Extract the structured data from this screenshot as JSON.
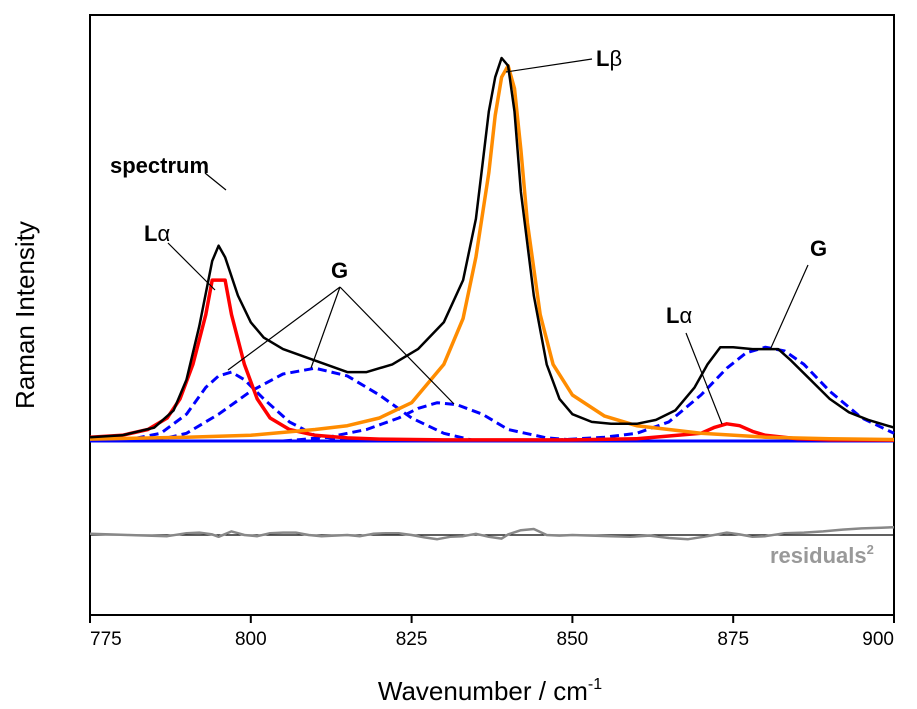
{
  "chart_data": {
    "type": "line",
    "xlabel": "Wavenumber / cm",
    "xlabel_sup": "-1",
    "ylabel": "Raman Intensity",
    "xlim": [
      775,
      900
    ],
    "ylim_upper": [
      0,
      1.0
    ],
    "x_ticks": [
      775,
      800,
      825,
      850,
      875,
      900
    ],
    "x_tick_labels": [
      "775",
      "800",
      "825",
      "850",
      "875",
      "900"
    ],
    "grid": false,
    "colors": {
      "spectrum": "#000000",
      "L_alpha": "#ff0000",
      "L_beta": "#ff8c00",
      "G": "#0000ff",
      "residuals": "#888888"
    },
    "annotations": {
      "spectrum": "spectrum",
      "L_alpha_1": "L",
      "L_alpha_2": "L",
      "alpha": "α",
      "L_beta": "L",
      "beta": "β",
      "G_1": "G",
      "G_2": "G",
      "residuals": "residuals",
      "residuals_sup": "2"
    },
    "series": [
      {
        "name": "spectrum",
        "style": "solid",
        "x": [
          775,
          780,
          785,
          788,
          790,
          792,
          794,
          795,
          796,
          798,
          800,
          802,
          805,
          810,
          815,
          818,
          822,
          826,
          830,
          833,
          835,
          836,
          837,
          838,
          839,
          840,
          841,
          842,
          844,
          846,
          848,
          850,
          853,
          856,
          860,
          863,
          866,
          869,
          871,
          873,
          875,
          878,
          880,
          882,
          884,
          887,
          890,
          893,
          896,
          900
        ],
        "y": [
          0.01,
          0.015,
          0.035,
          0.08,
          0.16,
          0.3,
          0.47,
          0.51,
          0.48,
          0.38,
          0.31,
          0.27,
          0.24,
          0.21,
          0.18,
          0.18,
          0.2,
          0.24,
          0.31,
          0.42,
          0.58,
          0.72,
          0.86,
          0.95,
          1.0,
          0.98,
          0.86,
          0.65,
          0.38,
          0.2,
          0.11,
          0.07,
          0.05,
          0.045,
          0.045,
          0.055,
          0.08,
          0.14,
          0.2,
          0.245,
          0.245,
          0.24,
          0.24,
          0.24,
          0.21,
          0.16,
          0.11,
          0.075,
          0.055,
          0.035
        ]
      },
      {
        "name": "L_alpha (796)",
        "style": "solid",
        "x": [
          775,
          780,
          784,
          787,
          789,
          791,
          793,
          794,
          796,
          797,
          799,
          801,
          803,
          806,
          810,
          815,
          820,
          830,
          840,
          850,
          860,
          870,
          872,
          874,
          876,
          878,
          880,
          885,
          890,
          900
        ],
        "y": [
          0.01,
          0.015,
          0.03,
          0.06,
          0.11,
          0.2,
          0.33,
          0.42,
          0.42,
          0.33,
          0.2,
          0.11,
          0.06,
          0.03,
          0.015,
          0.008,
          0.005,
          0.003,
          0.003,
          0.003,
          0.006,
          0.02,
          0.035,
          0.045,
          0.04,
          0.025,
          0.015,
          0.006,
          0.003,
          0.002
        ]
      },
      {
        "name": "G (797)",
        "style": "dashed",
        "x": [
          780,
          786,
          790,
          793,
          795,
          797,
          799,
          802,
          806,
          810,
          815
        ],
        "y": [
          0.0,
          0.02,
          0.07,
          0.14,
          0.17,
          0.18,
          0.16,
          0.11,
          0.05,
          0.015,
          0.0
        ]
      },
      {
        "name": "G (810)",
        "style": "dashed",
        "x": [
          785,
          790,
          795,
          800,
          805,
          810,
          815,
          820,
          825,
          830,
          835
        ],
        "y": [
          0.0,
          0.02,
          0.07,
          0.13,
          0.175,
          0.19,
          0.17,
          0.12,
          0.06,
          0.02,
          0.0
        ]
      },
      {
        "name": "G (830)",
        "style": "dashed",
        "x": [
          805,
          812,
          818,
          823,
          826,
          829,
          832,
          836,
          840,
          846,
          852
        ],
        "y": [
          0.0,
          0.01,
          0.03,
          0.06,
          0.085,
          0.1,
          0.095,
          0.07,
          0.03,
          0.008,
          0.0
        ]
      },
      {
        "name": "G (880)",
        "style": "dashed",
        "x": [
          845,
          855,
          860,
          865,
          870,
          874,
          877,
          880,
          883,
          886,
          890,
          895,
          900
        ],
        "y": [
          0.0,
          0.01,
          0.02,
          0.05,
          0.12,
          0.19,
          0.23,
          0.245,
          0.235,
          0.2,
          0.13,
          0.06,
          0.02
        ]
      },
      {
        "name": "L_beta (840)",
        "style": "solid",
        "x": [
          775,
          790,
          800,
          810,
          815,
          820,
          825,
          830,
          833,
          835,
          837,
          838,
          839,
          840,
          841,
          842,
          843,
          845,
          847,
          850,
          855,
          860,
          870,
          880,
          890,
          900
        ],
        "y": [
          0.005,
          0.01,
          0.015,
          0.03,
          0.04,
          0.06,
          0.1,
          0.2,
          0.32,
          0.48,
          0.7,
          0.85,
          0.95,
          0.98,
          0.92,
          0.76,
          0.57,
          0.33,
          0.2,
          0.12,
          0.065,
          0.04,
          0.02,
          0.01,
          0.006,
          0.004
        ]
      }
    ],
    "residuals": {
      "name": "residuals",
      "x": [
        775,
        778,
        781,
        784,
        787,
        790,
        792,
        794,
        795,
        797,
        799,
        801,
        803,
        805,
        807,
        809,
        811,
        813,
        815,
        817,
        819,
        821,
        823,
        825,
        827,
        829,
        831,
        833,
        835,
        837,
        839,
        840,
        842,
        844,
        846,
        848,
        850,
        853,
        856,
        859,
        862,
        865,
        868,
        871,
        874,
        876,
        878,
        880,
        883,
        886,
        889,
        892,
        895,
        898,
        900
      ],
      "y": [
        0.02,
        0.01,
        0.0,
        -0.01,
        -0.02,
        0.03,
        0.04,
        0.01,
        -0.03,
        0.06,
        0.0,
        -0.02,
        0.03,
        0.04,
        0.04,
        0.0,
        -0.02,
        -0.01,
        0.0,
        -0.02,
        0.02,
        0.03,
        0.03,
        0.0,
        -0.04,
        -0.07,
        -0.03,
        -0.02,
        0.02,
        -0.03,
        -0.06,
        0.01,
        0.08,
        0.1,
        0.0,
        -0.01,
        0.0,
        -0.01,
        -0.02,
        -0.03,
        -0.01,
        -0.05,
        -0.07,
        -0.02,
        0.04,
        0.01,
        -0.03,
        -0.02,
        0.03,
        0.04,
        0.06,
        0.09,
        0.11,
        0.12,
        0.13
      ]
    }
  }
}
